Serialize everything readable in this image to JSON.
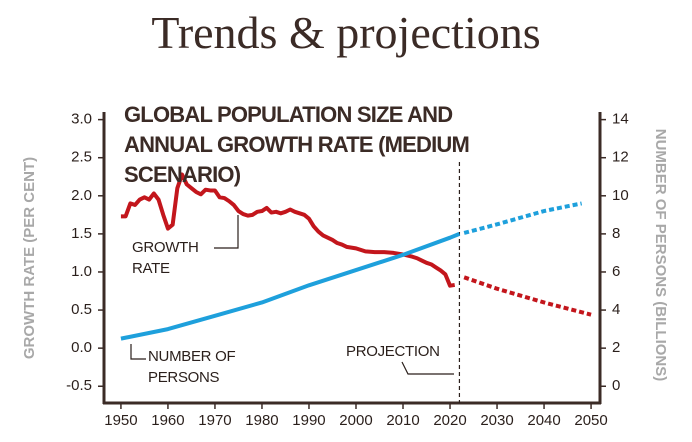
{
  "title": "Trends & projections",
  "chart_data": {
    "type": "line",
    "title": "GLOBAL POPULATION SIZE AND ANNUAL GROWTH RATE (MEDIUM SCENARIO)",
    "ylabel": "GROWTH RATE (PER CENT)",
    "y2label": "NUMBER OF PERSONS (BILLIONS)",
    "xlim": [
      1946.4,
      2051.9
    ],
    "xticks": [
      1950,
      1960,
      1970,
      1980,
      1990,
      2000,
      2010,
      2020,
      2030,
      2040,
      2050
    ],
    "ylim": [
      -0.72,
      3.1
    ],
    "yticks": [
      -0.5,
      {
        "value": 0,
        "label": "0.0"
      },
      0.5,
      {
        "value": 1,
        "label": "1.0"
      },
      1.5,
      {
        "value": 2,
        "label": "2.0"
      },
      2.5,
      {
        "value": 3,
        "label": "3.0"
      }
    ],
    "y2lim": [
      -0.88,
      14.4
    ],
    "y2ticks": [
      0,
      2,
      4,
      6,
      8,
      10,
      12,
      14
    ],
    "projection_start": 2022,
    "projection_label": "PROJECTION",
    "series": [
      {
        "name": "GROWTH RATE",
        "color": "#c3161c",
        "style": "solid",
        "x": [
          1950,
          1951,
          1952,
          1953,
          1954,
          1955,
          1956,
          1957,
          1958,
          1959,
          1960,
          1961,
          1962,
          1963,
          1964,
          1965,
          1966,
          1967,
          1968,
          1969,
          1970,
          1971,
          1972,
          1973,
          1974,
          1975,
          1976,
          1977,
          1978,
          1979,
          1980,
          1981,
          1982,
          1983,
          1984,
          1985,
          1986,
          1987,
          1988,
          1989,
          1990,
          1991,
          1992,
          1993,
          1994,
          1995,
          1996,
          1997,
          1998,
          1999,
          2000,
          2002,
          2004,
          2006,
          2008,
          2010,
          2012,
          2013,
          2014,
          2015,
          2016,
          2017,
          2018,
          2019,
          2020,
          2021
        ],
        "values": [
          1.73,
          1.73,
          1.9,
          1.88,
          1.95,
          1.98,
          1.95,
          2.03,
          1.95,
          1.75,
          1.57,
          1.62,
          2.1,
          2.28,
          2.15,
          2.1,
          2.05,
          2.02,
          2.08,
          2.07,
          2.07,
          1.98,
          1.97,
          1.93,
          1.88,
          1.8,
          1.76,
          1.74,
          1.75,
          1.79,
          1.8,
          1.84,
          1.78,
          1.79,
          1.77,
          1.79,
          1.82,
          1.79,
          1.77,
          1.75,
          1.7,
          1.6,
          1.53,
          1.48,
          1.45,
          1.42,
          1.38,
          1.36,
          1.33,
          1.32,
          1.31,
          1.27,
          1.26,
          1.26,
          1.25,
          1.23,
          1.2,
          1.18,
          1.15,
          1.12,
          1.1,
          1.06,
          1.02,
          0.97,
          0.82,
          0.83
        ]
      },
      {
        "color": "#c3161c",
        "style": "dashed",
        "x": [
          2023,
          2030,
          2040,
          2050
        ],
        "values": [
          0.93,
          0.78,
          0.6,
          0.44
        ]
      },
      {
        "name": "NUMBER OF PERSONS",
        "color": "#1ea0dc",
        "style": "solid",
        "axis": "y2",
        "x": [
          1950,
          1960,
          1970,
          1980,
          1990,
          2000,
          2010,
          2020,
          2022
        ],
        "values": [
          2.5,
          3.0,
          3.7,
          4.4,
          5.3,
          6.1,
          6.9,
          7.8,
          8.0
        ]
      },
      {
        "color": "#1ea0dc",
        "style": "dashed",
        "axis": "y2",
        "x": [
          2023,
          2030,
          2040,
          2048
        ],
        "values": [
          8.05,
          8.5,
          9.2,
          9.6
        ]
      }
    ]
  }
}
